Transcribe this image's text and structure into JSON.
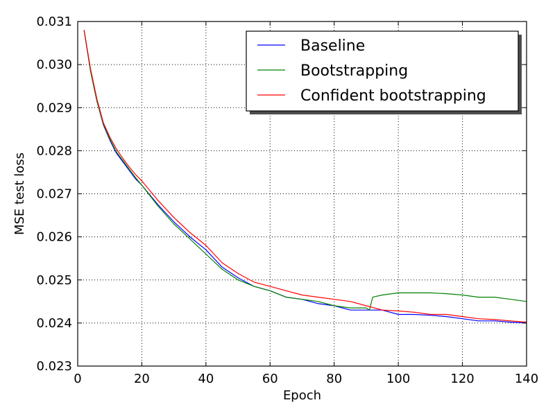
{
  "chart_data": {
    "type": "line",
    "title": "",
    "xlabel": "Epoch",
    "ylabel": "MSE test loss",
    "xlim": [
      0,
      140
    ],
    "ylim": [
      0.023,
      0.031
    ],
    "x_ticks": [
      0,
      20,
      40,
      60,
      80,
      100,
      120,
      140
    ],
    "x_tick_labels": [
      "0",
      "20",
      "40",
      "60",
      "80",
      "100",
      "120",
      "140"
    ],
    "y_ticks": [
      0.023,
      0.024,
      0.025,
      0.026,
      0.027,
      0.028,
      0.029,
      0.03,
      0.031
    ],
    "y_tick_labels": [
      "0.023",
      "0.024",
      "0.025",
      "0.026",
      "0.027",
      "0.028",
      "0.029",
      "0.030",
      "0.031"
    ],
    "grid": true,
    "legend_position": "top-right",
    "series": [
      {
        "name": "Baseline",
        "color": "#0000ff",
        "x": [
          2,
          4,
          6,
          8,
          10,
          12,
          14,
          16,
          18,
          20,
          25,
          30,
          35,
          40,
          45,
          50,
          55,
          60,
          65,
          70,
          75,
          80,
          85,
          90,
          95,
          100,
          105,
          110,
          115,
          120,
          125,
          130,
          135,
          140
        ],
        "y": [
          0.0308,
          0.02985,
          0.02915,
          0.0286,
          0.02825,
          0.02795,
          0.02775,
          0.02755,
          0.02735,
          0.0272,
          0.02675,
          0.02635,
          0.026,
          0.0257,
          0.0253,
          0.02505,
          0.02485,
          0.02475,
          0.0246,
          0.02455,
          0.02445,
          0.0244,
          0.0243,
          0.0243,
          0.0243,
          0.0242,
          0.0242,
          0.02418,
          0.02415,
          0.0241,
          0.02405,
          0.02405,
          0.02402,
          0.024
        ]
      },
      {
        "name": "Bootstrapping",
        "color": "#008000",
        "x": [
          2,
          4,
          6,
          8,
          10,
          12,
          14,
          16,
          18,
          20,
          25,
          30,
          35,
          40,
          45,
          50,
          55,
          60,
          65,
          70,
          75,
          80,
          85,
          90,
          91,
          92,
          95,
          100,
          105,
          110,
          115,
          120,
          125,
          130,
          135,
          140
        ],
        "y": [
          0.0308,
          0.02985,
          0.02915,
          0.02862,
          0.02828,
          0.02798,
          0.02778,
          0.02758,
          0.02738,
          0.0272,
          0.02672,
          0.0263,
          0.02595,
          0.0256,
          0.02525,
          0.025,
          0.02485,
          0.02475,
          0.0246,
          0.02455,
          0.0245,
          0.0244,
          0.02435,
          0.02435,
          0.0243,
          0.0246,
          0.02465,
          0.0247,
          0.0247,
          0.0247,
          0.02468,
          0.02465,
          0.0246,
          0.0246,
          0.02455,
          0.0245
        ]
      },
      {
        "name": "Confident bootstrapping",
        "color": "#ff0000",
        "x": [
          2,
          4,
          6,
          8,
          10,
          12,
          14,
          16,
          18,
          20,
          25,
          30,
          35,
          40,
          45,
          50,
          55,
          60,
          65,
          70,
          75,
          80,
          85,
          90,
          95,
          100,
          105,
          110,
          115,
          120,
          125,
          130,
          135,
          140
        ],
        "y": [
          0.0308,
          0.0299,
          0.0292,
          0.02865,
          0.02832,
          0.02805,
          0.02783,
          0.02763,
          0.02745,
          0.0273,
          0.02685,
          0.02645,
          0.0261,
          0.0258,
          0.0254,
          0.02515,
          0.02495,
          0.02485,
          0.02475,
          0.02465,
          0.0246,
          0.02455,
          0.0245,
          0.0244,
          0.0243,
          0.02428,
          0.02425,
          0.0242,
          0.0242,
          0.02415,
          0.0241,
          0.02408,
          0.02405,
          0.02402
        ]
      }
    ]
  }
}
